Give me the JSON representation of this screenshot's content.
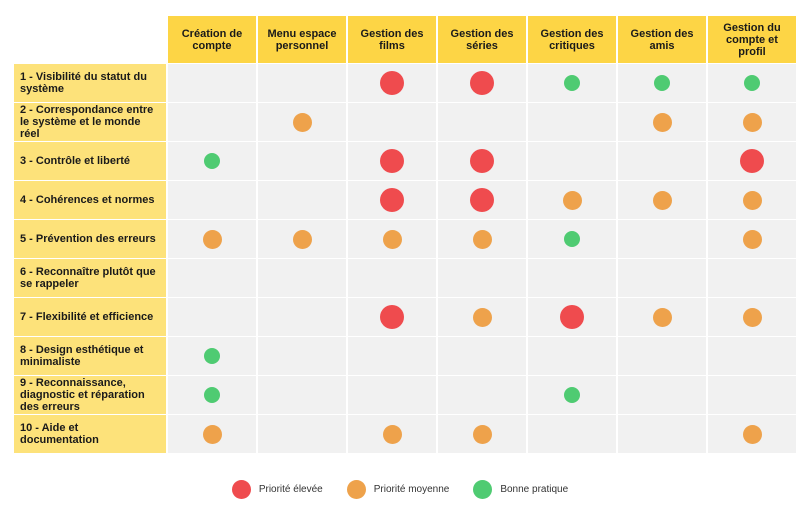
{
  "columns": [
    "Création de\ncompte",
    "Menu espace\npersonnel",
    "Gestion des\nfilms",
    "Gestion des\nséries",
    "Gestion des\ncritiques",
    "Gestion des\namis",
    "Gestion du\ncompte et\nprofil"
  ],
  "rows": [
    {
      "label": "1 - Visibilité du statut du système",
      "marks": [
        "",
        "",
        "high",
        "high",
        "good",
        "good",
        "good"
      ]
    },
    {
      "label": "2 - Correspondance entre le système et le monde réel",
      "marks": [
        "",
        "medium",
        "",
        "",
        "",
        "medium",
        "medium"
      ]
    },
    {
      "label": "3 - Contrôle et liberté",
      "marks": [
        "good",
        "",
        "high",
        "high",
        "",
        "",
        "high"
      ]
    },
    {
      "label": "4 - Cohérences et normes",
      "marks": [
        "",
        "",
        "high",
        "high",
        "medium",
        "medium",
        "medium"
      ]
    },
    {
      "label": "5 - Prévention des erreurs",
      "marks": [
        "medium",
        "medium",
        "medium",
        "medium",
        "good",
        "",
        "medium"
      ]
    },
    {
      "label": "6 - Reconnaître plutôt que se rappeler",
      "marks": [
        "",
        "",
        "",
        "",
        "",
        "",
        ""
      ]
    },
    {
      "label": "7 - Flexibilité et efficience",
      "marks": [
        "",
        "",
        "high",
        "medium",
        "high",
        "medium",
        "medium"
      ]
    },
    {
      "label": "8 - Design esthétique et minimaliste",
      "marks": [
        "good",
        "",
        "",
        "",
        "",
        "",
        ""
      ]
    },
    {
      "label": "9 - Reconnaissance, diagnostic et réparation des erreurs",
      "marks": [
        "good",
        "",
        "",
        "",
        "good",
        "",
        ""
      ]
    },
    {
      "label": "10 - Aide et documentation",
      "marks": [
        "medium",
        "",
        "medium",
        "medium",
        "",
        "",
        "medium"
      ]
    }
  ],
  "legend": [
    {
      "key": "high",
      "label": "Priorité élevée",
      "color": "#ef4b4e"
    },
    {
      "key": "medium",
      "label": "Priorité moyenne",
      "color": "#eea24b"
    },
    {
      "key": "good",
      "label": "Bonne pratique",
      "color": "#4fcb72"
    }
  ],
  "colors": {
    "header_bg": "#fdd545",
    "rowhead_bg": "#fde27a",
    "cell_bg": "#f1f1f1"
  }
}
